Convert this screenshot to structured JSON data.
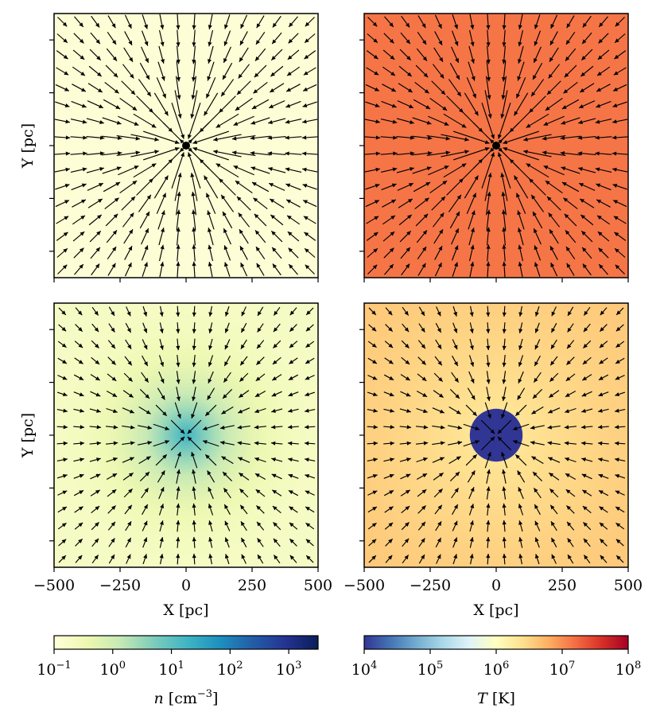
{
  "chart_data": [
    {
      "type": "heatmap",
      "panel": "top-left",
      "quantity": "n",
      "field": "uniform",
      "colormap": "YlGnBu",
      "color_log10": -0.95,
      "vectors": "radial-inflow-converging",
      "xlabel": "",
      "ylabel": "Y [pc]",
      "xlim": [
        -500,
        500
      ],
      "ylim": [
        -500,
        500
      ]
    },
    {
      "type": "heatmap",
      "panel": "top-right",
      "quantity": "T",
      "field": "uniform",
      "colormap": "RdYlBu_r",
      "color_log10": 7.15,
      "vectors": "radial-inflow-converging",
      "xlabel": "",
      "ylabel": "",
      "xlim": [
        -500,
        500
      ],
      "ylim": [
        -500,
        500
      ]
    },
    {
      "type": "heatmap",
      "panel": "bottom-left",
      "quantity": "n",
      "field": "centrally-concentrated",
      "colormap": "YlGnBu",
      "center_log10": 1.3,
      "edge_log10": -0.7,
      "vectors": "radial-inflow",
      "xlabel": "X [pc]",
      "ylabel": "Y [pc]",
      "xlim": [
        -500,
        500
      ],
      "ylim": [
        -500,
        500
      ]
    },
    {
      "type": "heatmap",
      "panel": "bottom-right",
      "quantity": "T",
      "field": "hot-shell-cold-core",
      "colormap": "RdYlBu_r",
      "core_radius_pc": 100,
      "core_log10": 4.0,
      "shell_log10": 6.2,
      "edge_log10": 6.6,
      "vectors": "radial-inflow",
      "xlabel": "X [pc]",
      "ylabel": "",
      "xlim": [
        -500,
        500
      ],
      "ylim": [
        -500,
        500
      ]
    }
  ],
  "axes": {
    "x_tick_labels": [
      "−500",
      "−250",
      "0",
      "250",
      "500"
    ],
    "x_tick_values": [
      -500,
      -250,
      0,
      250,
      500
    ],
    "y_tick_values": [
      -400,
      -200,
      0,
      200,
      400
    ],
    "xlabel": "X [pc]",
    "ylabel": "Y [pc]"
  },
  "colorbars": [
    {
      "name": "density",
      "label_symbol": "n",
      "label_unit": "[cm",
      "label_exp": "−3",
      "label_close": "]",
      "range_log10": [
        -1,
        3.5
      ],
      "ticks": [
        {
          "base": "10",
          "exp": "−1",
          "log10": -1
        },
        {
          "base": "10",
          "exp": "0",
          "log10": 0
        },
        {
          "base": "10",
          "exp": "1",
          "log10": 1
        },
        {
          "base": "10",
          "exp": "2",
          "log10": 2
        },
        {
          "base": "10",
          "exp": "3",
          "log10": 3
        }
      ]
    },
    {
      "name": "temperature",
      "label_symbol": "T",
      "label_unit": "[K]",
      "range_log10": [
        4,
        8
      ],
      "ticks": [
        {
          "base": "10",
          "exp": "4",
          "log10": 4
        },
        {
          "base": "10",
          "exp": "5",
          "log10": 5
        },
        {
          "base": "10",
          "exp": "6",
          "log10": 6
        },
        {
          "base": "10",
          "exp": "7",
          "log10": 7
        },
        {
          "base": "10",
          "exp": "8",
          "log10": 8
        }
      ]
    }
  ],
  "colors": {
    "ylgnbu": [
      "#ffffd9",
      "#edf8b1",
      "#c7e9b4",
      "#7fcdbb",
      "#41b6c4",
      "#1d91c0",
      "#225ea8",
      "#253494",
      "#081d58"
    ],
    "rdylbu_r": [
      "#313695",
      "#4575b4",
      "#74add1",
      "#abd9e9",
      "#e0f3f8",
      "#ffffbf",
      "#fee090",
      "#fdae61",
      "#f46d43",
      "#d73027",
      "#a50026"
    ],
    "arrow": "#000000",
    "frame": "#000000"
  }
}
